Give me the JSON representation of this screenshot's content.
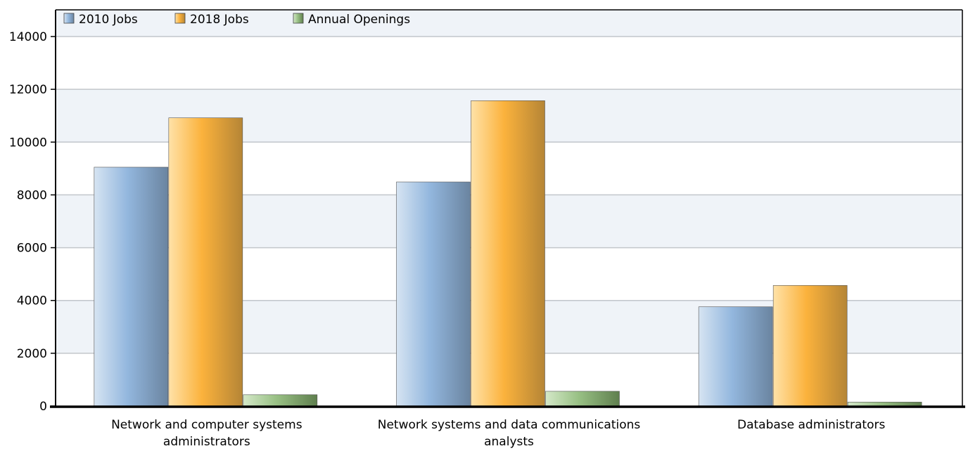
{
  "chart_data": {
    "type": "bar",
    "title": "",
    "xlabel": "",
    "ylabel": "",
    "ylim": [
      0,
      14000
    ],
    "yticks": [
      0,
      2000,
      4000,
      6000,
      8000,
      10000,
      12000,
      14000
    ],
    "ytick_labels": [
      "0",
      "2000",
      "4000",
      "6000",
      "8000",
      "10000",
      "12000",
      "14000"
    ],
    "grid": true,
    "legend_position": "top-left",
    "categories": [
      [
        "Network and computer systems",
        "administrators"
      ],
      [
        "Network systems and data communications",
        "analysts"
      ],
      [
        "Database administrators"
      ]
    ],
    "series": [
      {
        "name": "2010 Jobs",
        "color": "#8fb4dc",
        "values": [
          9050,
          8490,
          3760
        ]
      },
      {
        "name": "2018 Jobs",
        "color": "#fbb23c",
        "values": [
          10920,
          11570,
          4570
        ]
      },
      {
        "name": "Annual Openings",
        "color": "#8fb87b",
        "values": [
          430,
          560,
          150
        ]
      }
    ]
  }
}
